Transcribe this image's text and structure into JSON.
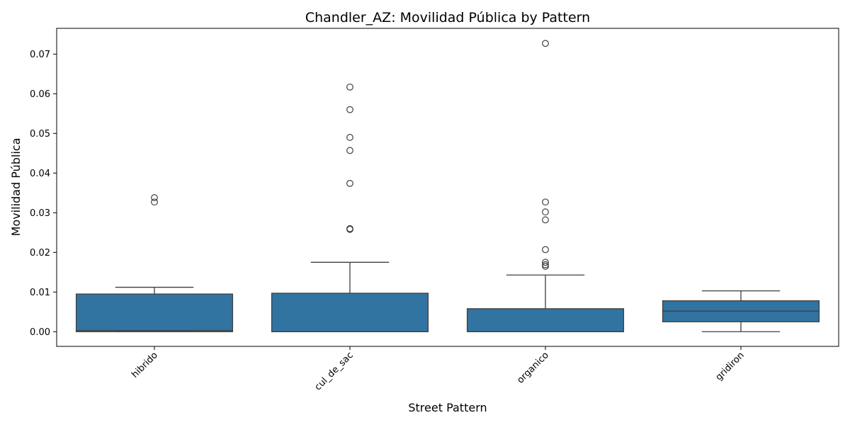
{
  "chart_data": {
    "type": "box",
    "title": "Chandler_AZ: Movilidad Pública by Pattern",
    "xlabel": "Street Pattern",
    "ylabel": "Movilidad Pública",
    "ylim": [
      -0.0037,
      0.0765
    ],
    "yticks": [
      0.0,
      0.01,
      0.02,
      0.03,
      0.04,
      0.05,
      0.06,
      0.07
    ],
    "ytick_labels": [
      "0.00",
      "0.01",
      "0.02",
      "0.03",
      "0.04",
      "0.05",
      "0.06",
      "0.07"
    ],
    "grid": false,
    "box_color": "#3274a1",
    "edge_color": "#3f3f3f",
    "categories": [
      {
        "name": "hibrido",
        "whisker_low": 0.0,
        "q1": 0.0,
        "median": 0.0003,
        "q3": 0.0095,
        "whisker_high": 0.0112,
        "outliers": [
          0.0338,
          0.0327
        ]
      },
      {
        "name": "cul_de_sac",
        "whisker_low": 0.0,
        "q1": 0.0,
        "median": 0.0,
        "q3": 0.0097,
        "whisker_high": 0.0175,
        "outliers": [
          0.0617,
          0.056,
          0.049,
          0.0457,
          0.0374,
          0.026,
          0.0258
        ]
      },
      {
        "name": "organico",
        "whisker_low": 0.0,
        "q1": 0.0,
        "median": 0.0,
        "q3": 0.0058,
        "whisker_high": 0.0143,
        "outliers": [
          0.0727,
          0.0327,
          0.0302,
          0.0282,
          0.0207,
          0.0175,
          0.0169,
          0.0165
        ]
      },
      {
        "name": "gridiron",
        "whisker_low": 0.0,
        "q1": 0.0025,
        "median": 0.0052,
        "q3": 0.0078,
        "whisker_high": 0.0103,
        "outliers": []
      }
    ]
  }
}
